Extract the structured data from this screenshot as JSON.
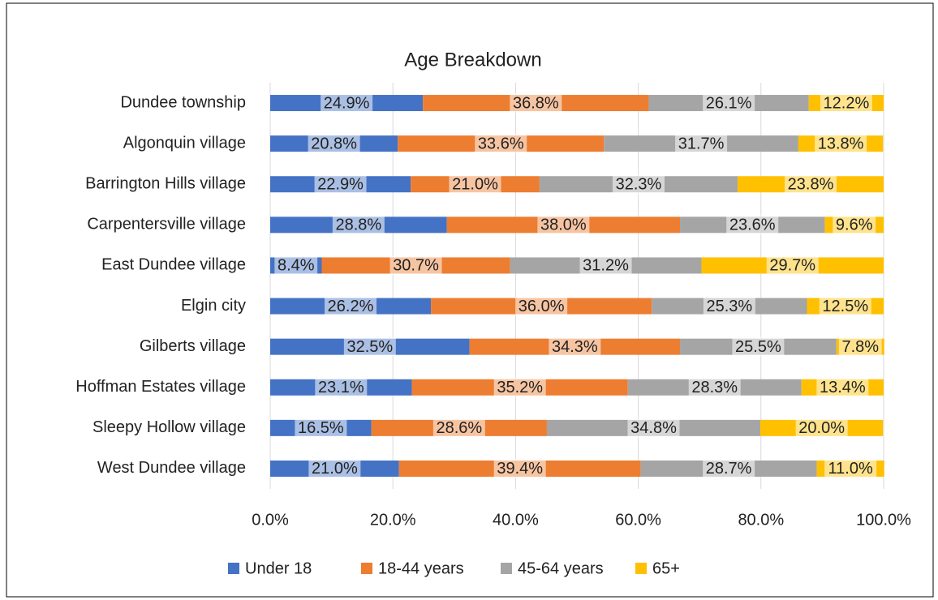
{
  "chart_data": {
    "type": "stacked_barh",
    "title": "Age Breakdown",
    "categories": [
      "Dundee township",
      "Algonquin village",
      "Barrington Hills village",
      "Carpentersville village",
      "East Dundee village",
      "Elgin city",
      "Gilberts village",
      "Hoffman Estates village",
      "Sleepy Hollow village",
      "West Dundee village"
    ],
    "series": [
      {
        "name": "Under 18",
        "color": "#4472c4",
        "values": [
          24.9,
          20.8,
          22.9,
          28.8,
          8.4,
          26.2,
          32.5,
          23.1,
          16.5,
          21.0
        ],
        "value_labels": [
          "24.9%",
          "20.8%",
          "22.9%",
          "28.8%",
          "8.4%",
          "26.2%",
          "32.5%",
          "23.1%",
          "16.5%",
          "21.0%"
        ]
      },
      {
        "name": "18-44 years",
        "color": "#ed7d31",
        "values": [
          36.8,
          33.6,
          21.0,
          38.0,
          30.7,
          36.0,
          34.3,
          35.2,
          28.6,
          39.4
        ],
        "value_labels": [
          "36.8%",
          "33.6%",
          "21.0%",
          "38.0%",
          "30.7%",
          "36.0%",
          "34.3%",
          "35.2%",
          "28.6%",
          "39.4%"
        ]
      },
      {
        "name": "45-64 years",
        "color": "#a5a5a5",
        "values": [
          26.1,
          31.7,
          32.3,
          23.6,
          31.2,
          25.3,
          25.5,
          28.3,
          34.8,
          28.7
        ],
        "value_labels": [
          "26.1%",
          "31.7%",
          "32.3%",
          "23.6%",
          "31.2%",
          "25.3%",
          "25.5%",
          "28.3%",
          "34.8%",
          "28.7%"
        ]
      },
      {
        "name": "65+",
        "color": "#ffc000",
        "values": [
          12.2,
          13.8,
          23.8,
          9.6,
          29.7,
          12.5,
          7.8,
          13.4,
          20.0,
          11.0
        ],
        "value_labels": [
          "12.2%",
          "13.8%",
          "23.8%",
          "9.6%",
          "29.7%",
          "12.5%",
          "7.8%",
          "13.4%",
          "20.0%",
          "11.0%"
        ]
      }
    ],
    "xlim": [
      0,
      100
    ],
    "xticks": [
      {
        "value": 0,
        "label": "0.0%"
      },
      {
        "value": 20,
        "label": "20.0%"
      },
      {
        "value": 40,
        "label": "40.0%"
      },
      {
        "value": 60,
        "label": "60.0%"
      },
      {
        "value": 80,
        "label": "80.0%"
      },
      {
        "value": 100,
        "label": "100.0%"
      }
    ],
    "grid": true,
    "legend": "bottom"
  }
}
